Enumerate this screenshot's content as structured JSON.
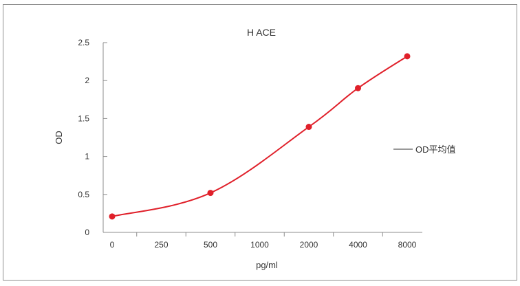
{
  "chart_data": {
    "type": "line",
    "title": "H ACE",
    "xlabel": "pg/ml",
    "ylabel": "OD",
    "categories": [
      "0",
      "250",
      "500",
      "1000",
      "2000",
      "4000",
      "8000"
    ],
    "yticks": [
      "0",
      "0.5",
      "1",
      "1.5",
      "2",
      "2.5"
    ],
    "ylim": [
      0,
      2.5
    ],
    "grid": false,
    "legend_position": "right",
    "series": [
      {
        "name": "OD平均值",
        "color": "#e0202a",
        "markers": [
          {
            "x": "0",
            "y": 0.21
          },
          {
            "x": "500",
            "y": 0.52
          },
          {
            "x": "2000",
            "y": 1.39
          },
          {
            "x": "4000",
            "y": 1.9
          },
          {
            "x": "8000",
            "y": 2.32
          }
        ]
      }
    ]
  }
}
